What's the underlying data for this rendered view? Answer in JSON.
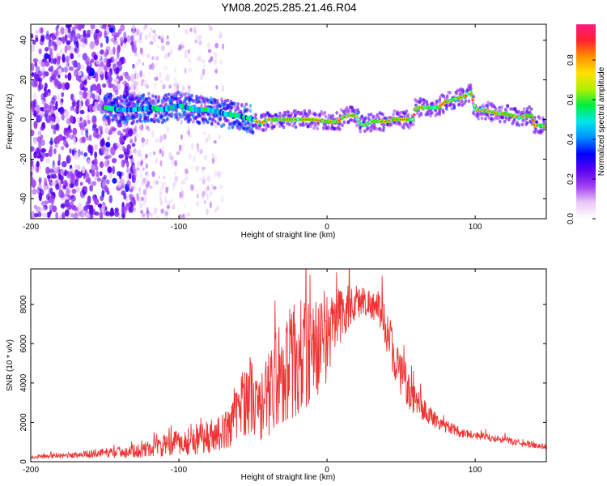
{
  "title": "YM08.2025.285.21.46.R04",
  "chart_data": [
    {
      "type": "heatmap",
      "xlabel": "Height of straight line (km)",
      "ylabel": "Frequency (Hz)",
      "xlim": [
        -200,
        148
      ],
      "ylim": [
        -50,
        48
      ],
      "xticks": [
        -200,
        -100,
        0,
        100
      ],
      "xtick_labels": [
        "-200",
        "-100",
        "0",
        "100"
      ],
      "yticks": [
        -40,
        -20,
        0,
        20,
        40
      ],
      "ytick_labels": [
        "-40",
        "-20",
        "0",
        "20",
        "40"
      ],
      "colorbar": {
        "label": "Normalized spectral amplitude",
        "range": [
          0,
          0.98
        ],
        "ticks": [
          0.0,
          0.2,
          0.4,
          0.6,
          0.8
        ],
        "tick_labels": [
          "0.0",
          "0.2",
          "0.4",
          "0.6",
          "0.8"
        ],
        "colors": [
          "#ffffff",
          "#e9c9f7",
          "#a040f0",
          "#5a00f0",
          "#0000ff",
          "#0090ff",
          "#00e8e8",
          "#00ee40",
          "#b0f000",
          "#ffe000",
          "#ff9000",
          "#ff2030",
          "#ff1a80"
        ]
      },
      "ridge": {
        "x": [
          -150,
          -140,
          -130,
          -120,
          -110,
          -100,
          -90,
          -80,
          -70,
          -60,
          -50,
          -45,
          -40,
          -30,
          -20,
          -10,
          0,
          8,
          10,
          15,
          20,
          22,
          25,
          30,
          35,
          40,
          45,
          50,
          55,
          58,
          60,
          65,
          70,
          75,
          80,
          85,
          90,
          94,
          95,
          97,
          100,
          110,
          115,
          120,
          125,
          130,
          135,
          138,
          140,
          145,
          148
        ],
        "y": [
          6,
          5,
          5,
          6,
          5,
          7,
          5,
          5,
          3,
          2,
          0,
          -2,
          0,
          0,
          0,
          0,
          -1,
          -1,
          1,
          2,
          2,
          -2,
          -3,
          -1,
          -1,
          -1,
          0,
          0,
          0,
          0,
          6,
          6,
          6,
          6,
          9,
          10,
          11,
          12,
          13,
          14,
          5,
          4,
          3,
          3,
          2,
          1,
          2,
          2,
          -3,
          -3,
          -4
        ],
        "weak_below_x": -50
      },
      "noise_field": {
        "x_range": [
          -200,
          -130
        ],
        "weak_x_range": [
          -130,
          -70
        ],
        "description": "broad-band low-amplitude speckle"
      }
    },
    {
      "type": "line",
      "xlabel": "Height of straight line (km)",
      "ylabel": "SNR (10 * v/v)",
      "xlim": [
        -200,
        148
      ],
      "ylim": [
        0,
        9800
      ],
      "xticks": [
        -200,
        -100,
        0,
        100
      ],
      "xtick_labels": [
        "-200",
        "-100",
        "0",
        "100"
      ],
      "yticks": [
        0,
        2000,
        4000,
        6000,
        8000
      ],
      "ytick_labels": [
        "0",
        "2000",
        "4000",
        "6000",
        "8000"
      ],
      "color": "#ee3333",
      "envelope": {
        "x": [
          -200,
          -180,
          -160,
          -150,
          -140,
          -130,
          -120,
          -110,
          -100,
          -90,
          -80,
          -70,
          -65,
          -60,
          -55,
          -52,
          -50,
          -45,
          -40,
          -35,
          -30,
          -25,
          -20,
          -15,
          -10,
          -5,
          0,
          5,
          10,
          15,
          20,
          25,
          30,
          35,
          40,
          45,
          50,
          55,
          60,
          70,
          80,
          90,
          100,
          110,
          120,
          130,
          140,
          148
        ],
        "mean": [
          250,
          300,
          400,
          450,
          500,
          550,
          650,
          800,
          950,
          1100,
          1300,
          1500,
          1900,
          2600,
          3200,
          3500,
          3100,
          2600,
          3400,
          4200,
          4700,
          5000,
          5200,
          5400,
          5600,
          5900,
          6300,
          7000,
          7500,
          7900,
          8100,
          8200,
          8000,
          7600,
          6800,
          5500,
          4400,
          3600,
          3000,
          2300,
          1800,
          1500,
          1350,
          1200,
          1100,
          950,
          850,
          750
        ],
        "amplitude": [
          120,
          150,
          220,
          280,
          330,
          400,
          500,
          650,
          800,
          900,
          1000,
          1100,
          1300,
          1700,
          2200,
          2400,
          2200,
          1900,
          2500,
          3000,
          3300,
          3500,
          3600,
          3400,
          3200,
          3000,
          2600,
          2200,
          1800,
          1400,
          1100,
          900,
          900,
          1100,
          1300,
          1400,
          1300,
          1100,
          900,
          600,
          400,
          300,
          250,
          230,
          210,
          200,
          190,
          180
        ]
      }
    }
  ]
}
